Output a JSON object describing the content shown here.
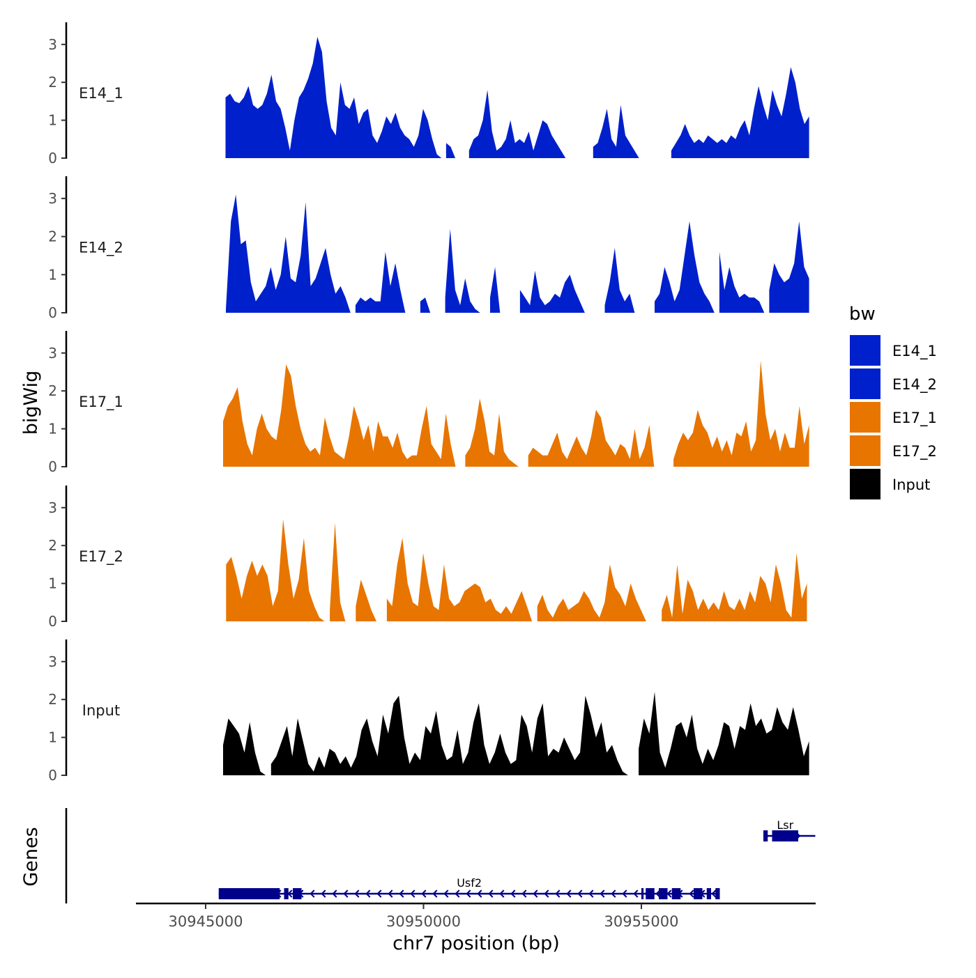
{
  "chart_data": {
    "type": "area",
    "title": "",
    "ylabel": "bigWig",
    "genes_label": "Genes",
    "xlabel": "chr7 position (bp)",
    "xlim": [
      30943400,
      30959000
    ],
    "xticks": [
      30945000,
      30950000,
      30955000
    ],
    "xtick_labels": [
      "30945000",
      "30950000",
      "30955000"
    ],
    "ylim": [
      0,
      3.4
    ],
    "yticks": [
      0,
      1,
      2,
      3
    ],
    "ytick_labels": [
      "0",
      "1",
      "2",
      "3"
    ],
    "legend": {
      "title": "bw",
      "entries": [
        "E14_1",
        "E14_2",
        "E17_1",
        "E17_2",
        "Input"
      ],
      "colors": [
        "#0020CC",
        "#0020CC",
        "#E87500",
        "#E87500",
        "#000000"
      ]
    },
    "series": [
      {
        "name": "E14_1",
        "label": "E14_1",
        "color": "#0020CC",
        "x_start": 30945350,
        "x_end": 30958850,
        "values": [
          0,
          1.6,
          1.7,
          1.5,
          1.45,
          1.6,
          1.9,
          1.4,
          1.3,
          1.4,
          1.7,
          2.2,
          1.5,
          1.3,
          0.8,
          0.2,
          1.0,
          1.6,
          1.8,
          2.1,
          2.5,
          3.2,
          2.8,
          1.5,
          0.8,
          0.6,
          2.0,
          1.4,
          1.3,
          1.6,
          0.9,
          1.2,
          1.3,
          0.6,
          0.4,
          0.7,
          1.1,
          0.9,
          1.2,
          0.8,
          0.6,
          0.5,
          0.3,
          0.6,
          1.3,
          1.0,
          0.5,
          0.1,
          0,
          0.4,
          0.3,
          0,
          0,
          0,
          0.2,
          0.5,
          0.6,
          1.0,
          1.8,
          0.7,
          0.2,
          0.3,
          0.5,
          1.0,
          0.4,
          0.5,
          0.4,
          0.7,
          0.2,
          0.6,
          1.0,
          0.9,
          0.6,
          0.4,
          0.2,
          0,
          0,
          0,
          0,
          0,
          0,
          0.3,
          0.4,
          0.8,
          1.3,
          0.5,
          0.3,
          1.4,
          0.6,
          0.4,
          0.2,
          0,
          0,
          0,
          0,
          0,
          0,
          0,
          0.2,
          0.4,
          0.6,
          0.9,
          0.6,
          0.4,
          0.5,
          0.4,
          0.6,
          0.5,
          0.4,
          0.5,
          0.4,
          0.6,
          0.5,
          0.8,
          1.0,
          0.6,
          1.3,
          1.9,
          1.4,
          1.0,
          1.8,
          1.4,
          1.1,
          1.7,
          2.4,
          2.0,
          1.3,
          0.9,
          1.1
        ],
        "note": "signal track"
      },
      {
        "name": "E14_2",
        "label": "E14_2",
        "color": "#0020CC",
        "x_start": 30945350,
        "x_end": 30958850,
        "values": [
          0,
          0.1,
          2.4,
          3.1,
          1.8,
          1.9,
          0.8,
          0.3,
          0.5,
          0.7,
          1.2,
          0.6,
          1.0,
          2.0,
          0.9,
          0.8,
          1.5,
          2.9,
          0.7,
          0.9,
          1.3,
          1.7,
          1.0,
          0.5,
          0.7,
          0.4,
          0,
          0.2,
          0.4,
          0.3,
          0.4,
          0.3,
          0.3,
          1.6,
          0.7,
          1.3,
          0.6,
          0,
          0,
          0,
          0.3,
          0.4,
          0,
          0,
          0,
          0.4,
          2.2,
          0.6,
          0.2,
          0.9,
          0.3,
          0.1,
          0,
          0,
          0.4,
          1.2,
          0,
          0,
          0,
          0,
          0.6,
          0.4,
          0.2,
          1.1,
          0.4,
          0.2,
          0.3,
          0.5,
          0.4,
          0.8,
          1.0,
          0.6,
          0.3,
          0,
          0,
          0,
          0,
          0.2,
          0.8,
          1.7,
          0.6,
          0.3,
          0.5,
          0,
          0,
          0,
          0,
          0.3,
          0.5,
          1.2,
          0.8,
          0.3,
          0.6,
          1.5,
          2.4,
          1.5,
          0.8,
          0.5,
          0.3,
          0,
          1.6,
          0.6,
          1.2,
          0.7,
          0.4,
          0.5,
          0.4,
          0.4,
          0.3,
          0,
          0.6,
          1.3,
          1.0,
          0.8,
          0.9,
          1.3,
          2.4,
          1.2,
          0.9
        ],
        "note": "signal track"
      },
      {
        "name": "E17_1",
        "label": "E17_1",
        "color": "#E87500",
        "x_start": 30945400,
        "x_end": 30958850,
        "values": [
          1.2,
          1.6,
          1.8,
          2.1,
          1.2,
          0.6,
          0.3,
          1.0,
          1.4,
          1.0,
          0.8,
          0.7,
          1.5,
          2.7,
          2.4,
          1.6,
          1.0,
          0.6,
          0.4,
          0.5,
          0.3,
          1.3,
          0.8,
          0.4,
          0.3,
          0.2,
          0.8,
          1.6,
          1.2,
          0.7,
          1.1,
          0.4,
          1.2,
          0.8,
          0.8,
          0.5,
          0.9,
          0.4,
          0.2,
          0.3,
          0.3,
          1.0,
          1.6,
          0.6,
          0.4,
          0.2,
          1.4,
          0.6,
          0,
          0,
          0.3,
          0.5,
          1.0,
          1.8,
          1.2,
          0.4,
          0.3,
          1.4,
          0.4,
          0.2,
          0.1,
          0,
          0,
          0.3,
          0.5,
          0.4,
          0.3,
          0.3,
          0.6,
          0.9,
          0.4,
          0.2,
          0.5,
          0.8,
          0.5,
          0.3,
          0.8,
          1.5,
          1.3,
          0.7,
          0.5,
          0.3,
          0.6,
          0.5,
          0.2,
          1.0,
          0.2,
          0.5,
          1.1,
          0,
          0,
          0,
          0,
          0.2,
          0.6,
          0.9,
          0.7,
          0.9,
          1.5,
          1.1,
          0.9,
          0.5,
          0.8,
          0.4,
          0.7,
          0.3,
          0.9,
          0.8,
          1.2,
          0.4,
          0.7,
          2.8,
          1.4,
          0.7,
          1.0,
          0.4,
          0.9,
          0.5,
          0.5,
          1.6,
          0.6,
          1.1
        ],
        "note": "signal track"
      },
      {
        "name": "E17_2",
        "label": "E17_2",
        "color": "#E87500",
        "x_start": 30945350,
        "x_end": 30958800,
        "values": [
          0,
          1.5,
          1.7,
          1.2,
          0.6,
          1.2,
          1.6,
          1.2,
          1.5,
          1.2,
          0.4,
          0.8,
          2.7,
          1.5,
          0.6,
          1.1,
          2.2,
          0.8,
          0.4,
          0.1,
          0,
          0.3,
          2.6,
          0.5,
          0,
          0,
          0.4,
          1.1,
          0.7,
          0.3,
          0,
          0,
          0.6,
          0.4,
          1.5,
          2.2,
          1.0,
          0.5,
          0.4,
          1.8,
          1.0,
          0.4,
          0.3,
          1.5,
          0.6,
          0.4,
          0.5,
          0.8,
          0.9,
          1.0,
          0.9,
          0.5,
          0.6,
          0.3,
          0.2,
          0.4,
          0.2,
          0.5,
          0.8,
          0.4,
          0,
          0.4,
          0.7,
          0.3,
          0.1,
          0.4,
          0.6,
          0.3,
          0.4,
          0.5,
          0.8,
          0.6,
          0.3,
          0.1,
          0.5,
          1.5,
          0.9,
          0.7,
          0.4,
          1.0,
          0.6,
          0.3,
          0,
          0,
          0,
          0.3,
          0.7,
          0.1,
          1.5,
          0.2,
          1.1,
          0.8,
          0.3,
          0.6,
          0.3,
          0.5,
          0.3,
          0.8,
          0.4,
          0.3,
          0.6,
          0.3,
          0.8,
          0.5,
          1.2,
          1.0,
          0.5,
          1.5,
          1.0,
          0.3,
          0.1,
          1.8,
          0.6,
          1.0
        ],
        "note": "signal track"
      },
      {
        "name": "Input",
        "label": "Input",
        "color": "#000000",
        "x_start": 30945400,
        "x_end": 30958850,
        "values": [
          0.8,
          1.5,
          1.3,
          1.1,
          0.6,
          1.4,
          0.6,
          0.1,
          0,
          0.3,
          0.5,
          0.9,
          1.3,
          0.5,
          1.5,
          0.9,
          0.3,
          0.1,
          0.5,
          0.2,
          0.7,
          0.6,
          0.3,
          0.5,
          0.2,
          0.5,
          1.2,
          1.5,
          0.9,
          0.5,
          1.6,
          1.1,
          1.9,
          2.1,
          1.0,
          0.3,
          0.6,
          0.4,
          1.3,
          1.1,
          1.7,
          0.8,
          0.4,
          0.5,
          1.2,
          0.3,
          0.6,
          1.4,
          1.9,
          0.8,
          0.3,
          0.6,
          1.1,
          0.6,
          0.3,
          0.4,
          1.6,
          1.3,
          0.6,
          1.5,
          1.9,
          0.5,
          0.7,
          0.6,
          1.0,
          0.7,
          0.4,
          0.6,
          2.1,
          1.6,
          1.0,
          1.4,
          0.6,
          0.8,
          0.4,
          0.1,
          0,
          0,
          0.7,
          1.5,
          1.1,
          2.2,
          0.6,
          0.2,
          0.7,
          1.3,
          1.4,
          1.0,
          1.6,
          0.7,
          0.3,
          0.7,
          0.4,
          0.8,
          1.4,
          1.3,
          0.7,
          1.3,
          1.2,
          1.9,
          1.3,
          1.5,
          1.1,
          1.2,
          1.8,
          1.4,
          1.2,
          1.8,
          1.2,
          0.5,
          0.9
        ],
        "note": "signal track"
      }
    ],
    "genes": [
      {
        "name": "Usf2",
        "strand": "-",
        "start": 30945300,
        "end": 30956800,
        "row": 2,
        "exons": [
          [
            30945300,
            30946700
          ],
          [
            30946800,
            30946900
          ],
          [
            30947000,
            30947200
          ],
          [
            30955000,
            30955050
          ],
          [
            30955100,
            30955300
          ],
          [
            30955400,
            30955600
          ],
          [
            30955700,
            30955900
          ],
          [
            30956200,
            30956400
          ],
          [
            30956500,
            30956600
          ],
          [
            30956700,
            30956800
          ]
        ]
      },
      {
        "name": "Lsr",
        "strand": "+",
        "start": 30957800,
        "end": 30958800,
        "row": 1,
        "exons": [
          [
            30957800,
            30957900
          ],
          [
            30958000,
            30958600
          ]
        ]
      }
    ]
  }
}
